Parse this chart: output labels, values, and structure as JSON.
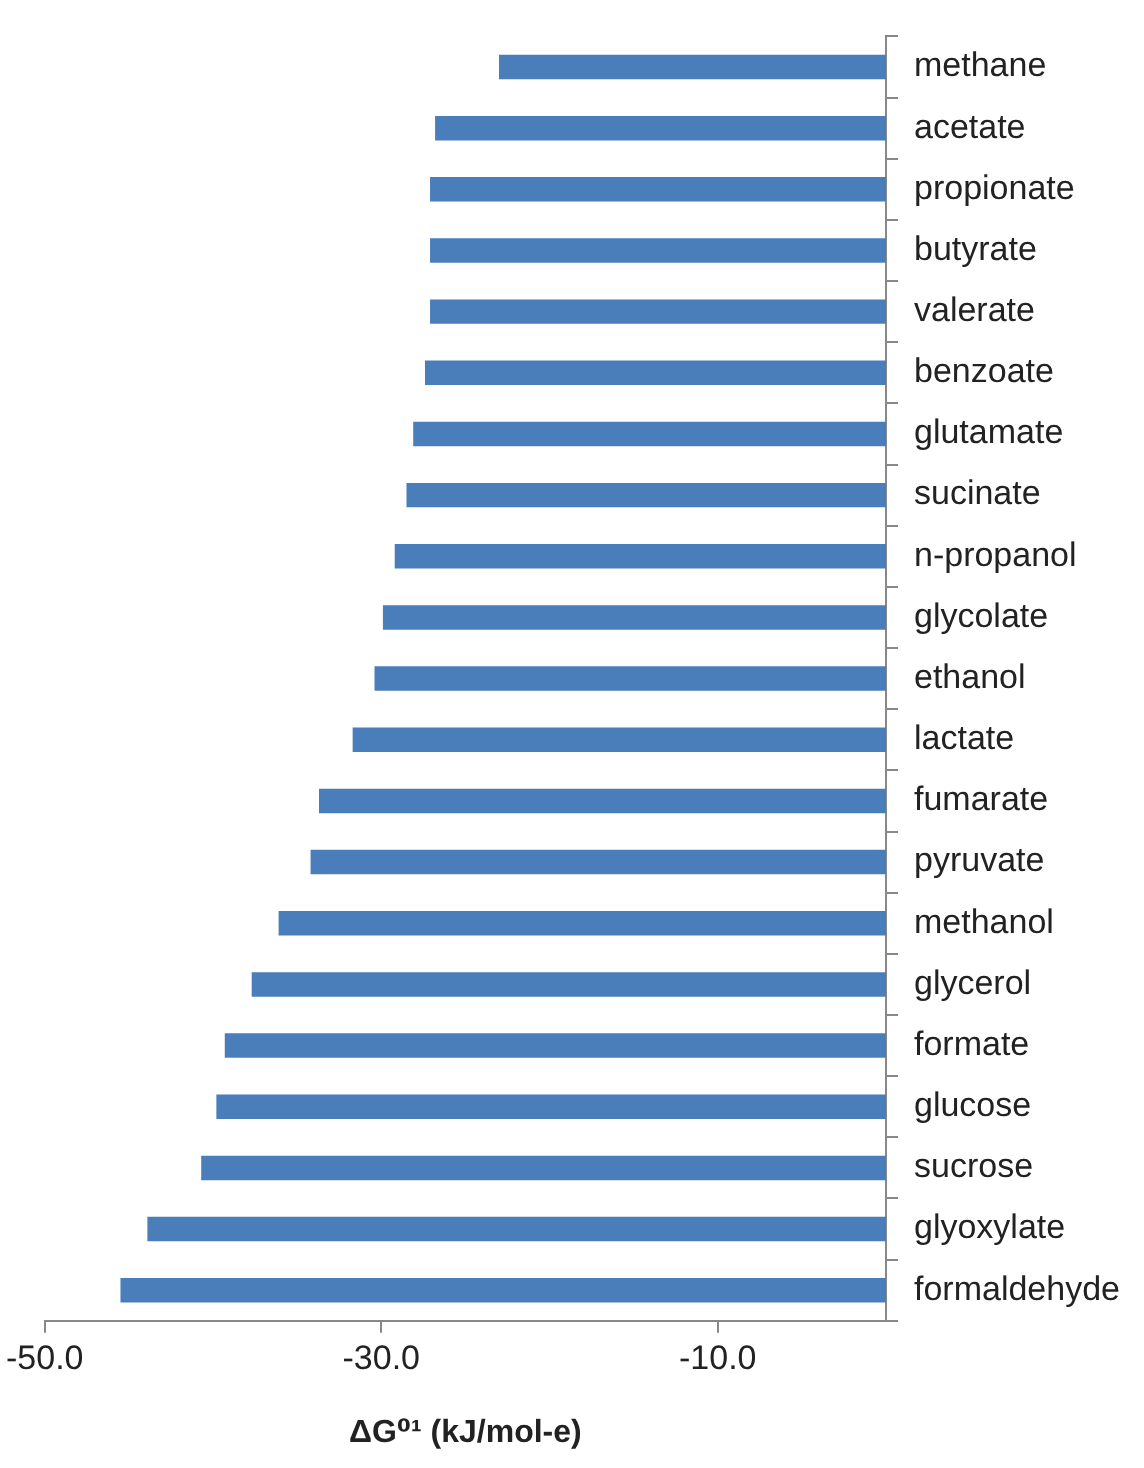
{
  "chart_data": {
    "type": "bar",
    "orientation": "horizontal",
    "xlabel": "ΔG⁰¹ (kJ/mol-e)",
    "categories": [
      "methane",
      "acetate",
      "propionate",
      "butyrate",
      "valerate",
      "benzoate",
      "glutamate",
      "sucinate",
      "n-propanol",
      "glycolate",
      "ethanol",
      "lactate",
      "fumarate",
      "pyruvate",
      "methanol",
      "glycerol",
      "formate",
      "glucose",
      "sucrose",
      "glyoxylate",
      "formaldehyde"
    ],
    "values": [
      -23.0,
      -26.8,
      -27.1,
      -27.1,
      -27.1,
      -27.4,
      -28.1,
      -28.5,
      -29.2,
      -29.9,
      -30.4,
      -31.7,
      -33.7,
      -34.2,
      -36.1,
      -37.7,
      -39.3,
      -39.8,
      -40.7,
      -43.9,
      -45.5
    ],
    "color": "#4a7ebb",
    "xlim": [
      -50,
      0
    ],
    "xticks": [
      {
        "value": -50,
        "label": "-50.0"
      },
      {
        "value": -30,
        "label": "-30.0"
      },
      {
        "value": -10,
        "label": "-10.0"
      }
    ],
    "grid": false,
    "legend": false
  }
}
